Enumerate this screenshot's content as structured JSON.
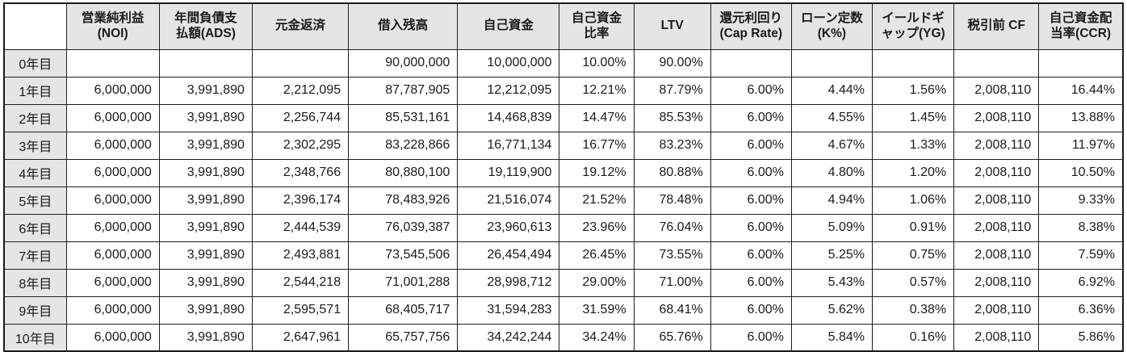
{
  "chart_data": {
    "type": "table",
    "title": "",
    "columns": [
      "",
      "営業純利益\n(NOI)",
      "年間負債支\n払額(ADS)",
      "元金返済",
      "借入残高",
      "自己資金",
      "自己資金\n比率",
      "LTV",
      "還元利回り\n(Cap Rate)",
      "ローン定数\n(K%)",
      "イールドギ\nャップ(YG)",
      "税引前 CF",
      "自己資金配\n当率(CCR)"
    ],
    "rows": [
      {
        "label": "0年目",
        "values": [
          "",
          "",
          "",
          "90,000,000",
          "10,000,000",
          "10.00%",
          "90.00%",
          "",
          "",
          "",
          "",
          ""
        ]
      },
      {
        "label": "1年目",
        "values": [
          "6,000,000",
          "3,991,890",
          "2,212,095",
          "87,787,905",
          "12,212,095",
          "12.21%",
          "87.79%",
          "6.00%",
          "4.44%",
          "1.56%",
          "2,008,110",
          "16.44%"
        ]
      },
      {
        "label": "2年目",
        "values": [
          "6,000,000",
          "3,991,890",
          "2,256,744",
          "85,531,161",
          "14,468,839",
          "14.47%",
          "85.53%",
          "6.00%",
          "4.55%",
          "1.45%",
          "2,008,110",
          "13.88%"
        ]
      },
      {
        "label": "3年目",
        "values": [
          "6,000,000",
          "3,991,890",
          "2,302,295",
          "83,228,866",
          "16,771,134",
          "16.77%",
          "83.23%",
          "6.00%",
          "4.67%",
          "1.33%",
          "2,008,110",
          "11.97%"
        ]
      },
      {
        "label": "4年目",
        "values": [
          "6,000,000",
          "3,991,890",
          "2,348,766",
          "80,880,100",
          "19,119,900",
          "19.12%",
          "80.88%",
          "6.00%",
          "4.80%",
          "1.20%",
          "2,008,110",
          "10.50%"
        ]
      },
      {
        "label": "5年目",
        "values": [
          "6,000,000",
          "3,991,890",
          "2,396,174",
          "78,483,926",
          "21,516,074",
          "21.52%",
          "78.48%",
          "6.00%",
          "4.94%",
          "1.06%",
          "2,008,110",
          "9.33%"
        ]
      },
      {
        "label": "6年目",
        "values": [
          "6,000,000",
          "3,991,890",
          "2,444,539",
          "76,039,387",
          "23,960,613",
          "23.96%",
          "76.04%",
          "6.00%",
          "5.09%",
          "0.91%",
          "2,008,110",
          "8.38%"
        ]
      },
      {
        "label": "7年目",
        "values": [
          "6,000,000",
          "3,991,890",
          "2,493,881",
          "73,545,506",
          "26,454,494",
          "26.45%",
          "73.55%",
          "6.00%",
          "5.25%",
          "0.75%",
          "2,008,110",
          "7.59%"
        ]
      },
      {
        "label": "8年目",
        "values": [
          "6,000,000",
          "3,991,890",
          "2,544,218",
          "71,001,288",
          "28,998,712",
          "29.00%",
          "71.00%",
          "6.00%",
          "5.43%",
          "0.57%",
          "2,008,110",
          "6.92%"
        ]
      },
      {
        "label": "9年目",
        "values": [
          "6,000,000",
          "3,991,890",
          "2,595,571",
          "68,405,717",
          "31,594,283",
          "31.59%",
          "68.41%",
          "6.00%",
          "5.62%",
          "0.38%",
          "2,008,110",
          "6.36%"
        ]
      },
      {
        "label": "10年目",
        "values": [
          "6,000,000",
          "3,991,890",
          "2,647,961",
          "65,757,756",
          "34,242,244",
          "34.24%",
          "65.76%",
          "6.00%",
          "5.84%",
          "0.16%",
          "2,008,110",
          "5.86%"
        ]
      }
    ],
    "layout": {
      "header_background": "#e5e5e5",
      "row_label_background": "#e5e5e5",
      "cell_background": "#ffffff",
      "border_color": "#1a1a1a",
      "grid": true
    }
  }
}
